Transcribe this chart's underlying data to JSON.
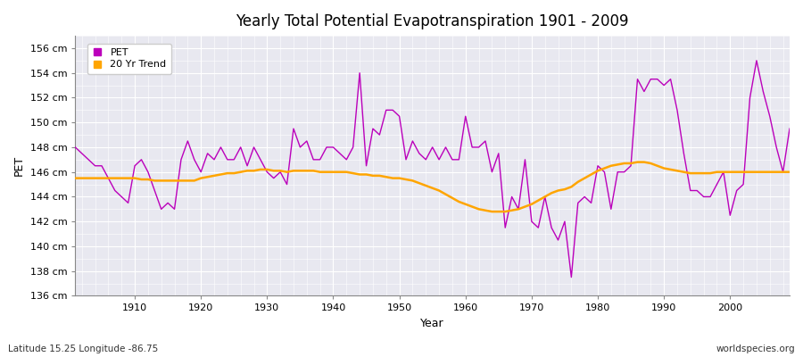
{
  "title": "Yearly Total Potential Evapotranspiration 1901 - 2009",
  "xlabel": "Year",
  "ylabel": "PET",
  "subtitle_left": "Latitude 15.25 Longitude -86.75",
  "subtitle_right": "worldspecies.org",
  "ylim": [
    136,
    157
  ],
  "yticks": [
    136,
    138,
    140,
    142,
    144,
    146,
    148,
    150,
    152,
    154,
    156
  ],
  "pet_color": "#bb00bb",
  "trend_color": "#ffa500",
  "bg_color": "#e8e8f0",
  "fig_color": "#ffffff",
  "years": [
    1901,
    1902,
    1903,
    1904,
    1905,
    1906,
    1907,
    1908,
    1909,
    1910,
    1911,
    1912,
    1913,
    1914,
    1915,
    1916,
    1917,
    1918,
    1919,
    1920,
    1921,
    1922,
    1923,
    1924,
    1925,
    1926,
    1927,
    1928,
    1929,
    1930,
    1931,
    1932,
    1933,
    1934,
    1935,
    1936,
    1937,
    1938,
    1939,
    1940,
    1941,
    1942,
    1943,
    1944,
    1945,
    1946,
    1947,
    1948,
    1949,
    1950,
    1951,
    1952,
    1953,
    1954,
    1955,
    1956,
    1957,
    1958,
    1959,
    1960,
    1961,
    1962,
    1963,
    1964,
    1965,
    1966,
    1967,
    1968,
    1969,
    1970,
    1971,
    1972,
    1973,
    1974,
    1975,
    1976,
    1977,
    1978,
    1979,
    1980,
    1981,
    1982,
    1983,
    1984,
    1985,
    1986,
    1987,
    1988,
    1989,
    1990,
    1991,
    1992,
    1993,
    1994,
    1995,
    1996,
    1997,
    1998,
    1999,
    2000,
    2001,
    2002,
    2003,
    2004,
    2005,
    2006,
    2007,
    2008,
    2009
  ],
  "pet": [
    148.0,
    147.5,
    147.0,
    146.5,
    146.5,
    145.5,
    144.5,
    144.0,
    143.5,
    146.5,
    147.0,
    146.0,
    144.5,
    143.0,
    143.5,
    143.0,
    147.0,
    148.5,
    147.0,
    146.0,
    147.5,
    147.0,
    148.0,
    147.0,
    147.0,
    148.0,
    146.5,
    148.0,
    147.0,
    146.0,
    145.5,
    146.0,
    145.0,
    149.5,
    148.0,
    148.5,
    147.0,
    147.0,
    148.0,
    148.0,
    147.5,
    147.0,
    148.0,
    154.0,
    146.5,
    149.5,
    149.0,
    151.0,
    151.0,
    150.5,
    147.0,
    148.5,
    147.5,
    147.0,
    148.0,
    147.0,
    148.0,
    147.0,
    147.0,
    150.5,
    148.0,
    148.0,
    148.5,
    146.0,
    147.5,
    141.5,
    144.0,
    143.0,
    147.0,
    142.0,
    141.5,
    144.0,
    141.5,
    140.5,
    142.0,
    137.5,
    143.5,
    144.0,
    143.5,
    146.5,
    146.0,
    143.0,
    146.0,
    146.0,
    146.5,
    153.5,
    152.5,
    153.5,
    153.5,
    153.0,
    153.5,
    151.0,
    147.5,
    144.5,
    144.5,
    144.0,
    144.0,
    145.0,
    146.0,
    142.5,
    144.5,
    145.0,
    152.0,
    155.0,
    152.5,
    150.5,
    148.0,
    146.0,
    149.5
  ],
  "trend": [
    145.5,
    145.5,
    145.5,
    145.5,
    145.5,
    145.5,
    145.5,
    145.5,
    145.5,
    145.5,
    145.4,
    145.4,
    145.3,
    145.3,
    145.3,
    145.3,
    145.3,
    145.3,
    145.3,
    145.5,
    145.6,
    145.7,
    145.8,
    145.9,
    145.9,
    146.0,
    146.1,
    146.1,
    146.2,
    146.2,
    146.1,
    146.1,
    146.0,
    146.1,
    146.1,
    146.1,
    146.1,
    146.0,
    146.0,
    146.0,
    146.0,
    146.0,
    145.9,
    145.8,
    145.8,
    145.7,
    145.7,
    145.6,
    145.5,
    145.5,
    145.4,
    145.3,
    145.1,
    144.9,
    144.7,
    144.5,
    144.2,
    143.9,
    143.6,
    143.4,
    143.2,
    143.0,
    142.9,
    142.8,
    142.8,
    142.8,
    142.9,
    143.0,
    143.2,
    143.4,
    143.7,
    144.0,
    144.3,
    144.5,
    144.6,
    144.8,
    145.2,
    145.5,
    145.8,
    146.1,
    146.3,
    146.5,
    146.6,
    146.7,
    146.7,
    146.8,
    146.8,
    146.7,
    146.5,
    146.3,
    146.2,
    146.1,
    146.0,
    145.9,
    145.9,
    145.9,
    145.9,
    146.0,
    146.0,
    146.0,
    146.0,
    146.0,
    146.0,
    146.0,
    146.0,
    146.0,
    146.0,
    146.0,
    146.0
  ]
}
